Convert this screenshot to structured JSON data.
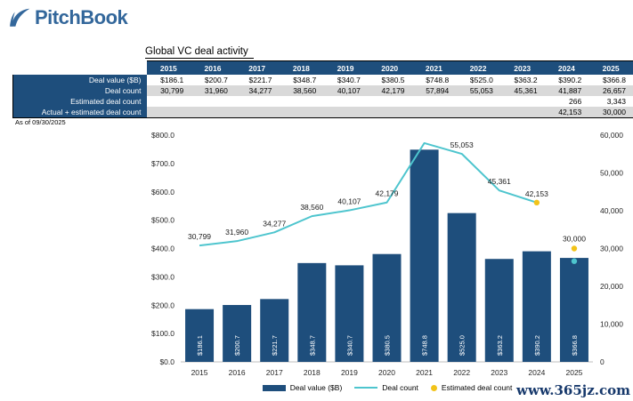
{
  "logo": {
    "text": "PitchBook"
  },
  "report": {
    "title": "Global VC deal activity",
    "as_of": "As of 09/30/2025"
  },
  "table": {
    "years": [
      "2015",
      "2016",
      "2017",
      "2018",
      "2019",
      "2020",
      "2021",
      "2022",
      "2023",
      "2024",
      "2025"
    ],
    "rows": [
      {
        "label": "Deal value ($B)",
        "cells": [
          "$186.1",
          "$200.7",
          "$221.7",
          "$348.7",
          "$340.7",
          "$380.5",
          "$748.8",
          "$525.0",
          "$363.2",
          "$390.2",
          "$366.8"
        ]
      },
      {
        "label": "Deal count",
        "cells": [
          "30,799",
          "31,960",
          "34,277",
          "38,560",
          "40,107",
          "42,179",
          "57,894",
          "55,053",
          "45,361",
          "41,887",
          "26,657"
        ]
      },
      {
        "label": "Estimated deal count",
        "cells": [
          "",
          "",
          "",
          "",
          "",
          "",
          "",
          "",
          "",
          "266",
          "3,343"
        ]
      },
      {
        "label": "Actual + estimated deal count",
        "cells": [
          "",
          "",
          "",
          "",
          "",
          "",
          "",
          "",
          "",
          "42,153",
          "30,000"
        ]
      }
    ]
  },
  "chart_data": {
    "type": "bar",
    "title": "Global VC deal activity",
    "categories": [
      "2015",
      "2016",
      "2017",
      "2018",
      "2019",
      "2020",
      "2021",
      "2022",
      "2023",
      "2024",
      "2025"
    ],
    "bar_series": {
      "name": "Deal value ($B)",
      "axis": "left",
      "values": [
        186.1,
        200.7,
        221.7,
        348.7,
        340.7,
        380.5,
        748.8,
        525.0,
        363.2,
        390.2,
        366.8
      ],
      "labels": [
        "$186.1",
        "$200.7",
        "$221.7",
        "$348.7",
        "$340.7",
        "$380.5",
        "$748.8",
        "$525.0",
        "$363.2",
        "$390.2",
        "$366.8"
      ]
    },
    "line_series": {
      "name": "Deal count",
      "axis": "right",
      "values": [
        30799,
        31960,
        34277,
        38560,
        40107,
        42179,
        57894,
        55053,
        45361,
        42153,
        null
      ],
      "labels": [
        "30,799",
        "31,960",
        "34,277",
        "38,560",
        "40,107",
        "42,179",
        "",
        "55,053",
        "45,361",
        "42,153",
        ""
      ]
    },
    "dot_series": [
      {
        "name": "Estimated deal count",
        "axis": "right",
        "color_key": "yellow",
        "values": [
          null,
          null,
          null,
          null,
          null,
          null,
          null,
          null,
          null,
          42153,
          30000
        ],
        "labels": [
          "",
          "",
          "",
          "",
          "",
          "",
          "",
          "",
          "",
          "",
          "30,000"
        ]
      },
      {
        "name": "Deal count actual marker",
        "axis": "right",
        "color_key": "teal",
        "values": [
          null,
          null,
          null,
          null,
          null,
          null,
          null,
          null,
          null,
          null,
          26657
        ],
        "labels": [
          "",
          "",
          "",
          "",
          "",
          "",
          "",
          "",
          "",
          "",
          ""
        ]
      }
    ],
    "left_axis": {
      "min": 0,
      "max": 800,
      "step": 100,
      "labels": [
        "$0.0",
        "$100.0",
        "$200.0",
        "$300.0",
        "$400.0",
        "$500.0",
        "$600.0",
        "$700.0",
        "$800.0"
      ]
    },
    "right_axis": {
      "min": 0,
      "max": 60000,
      "step": 10000,
      "labels": [
        "0",
        "10,000",
        "20,000",
        "30,000",
        "40,000",
        "50,000",
        "60,000"
      ]
    },
    "grid": false,
    "legend_position": "bottom"
  },
  "legend": {
    "items": [
      {
        "label": "Deal value ($B)",
        "swatch": "bar"
      },
      {
        "label": "Deal count",
        "swatch": "line"
      },
      {
        "label": "Estimated deal count",
        "swatch": "dot"
      }
    ]
  },
  "watermark": "www.365jz.com",
  "colors": {
    "brand": "#33679B",
    "bar_blue": "#1E4E7C",
    "teal": "#4EC5CE",
    "yellow": "#F2C319",
    "stripe_gray": "#D9D9D9",
    "axis_line": "#BFBFBF",
    "watermark_navy": "#16386B"
  }
}
